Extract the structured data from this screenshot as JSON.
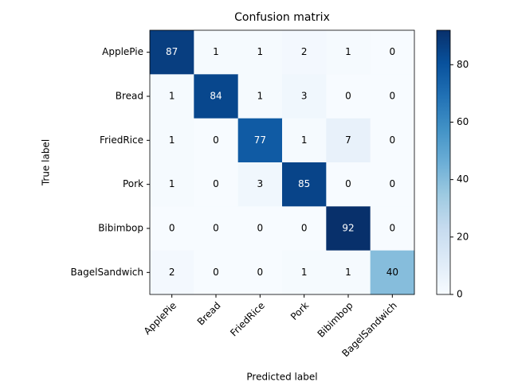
{
  "chart_data": {
    "type": "heatmap",
    "title": "Confusion matrix",
    "x_label": "Predicted label",
    "y_label": "True label",
    "x_categories": [
      "ApplePie",
      "Bread",
      "FriedRice",
      "Pork",
      "Bibimbop",
      "BagelSandwich"
    ],
    "y_categories": [
      "ApplePie",
      "Bread",
      "FriedRice",
      "Pork",
      "Bibimbop",
      "BagelSandwich"
    ],
    "values": [
      [
        87,
        1,
        1,
        2,
        1,
        0
      ],
      [
        1,
        84,
        1,
        3,
        0,
        0
      ],
      [
        1,
        0,
        77,
        1,
        7,
        0
      ],
      [
        1,
        0,
        3,
        85,
        0,
        0
      ],
      [
        0,
        0,
        0,
        0,
        92,
        0
      ],
      [
        2,
        0,
        0,
        1,
        1,
        40
      ]
    ],
    "colormap": "Blues",
    "clim": [
      0,
      92
    ],
    "cticks": [
      0,
      20,
      40,
      60,
      80
    ]
  }
}
